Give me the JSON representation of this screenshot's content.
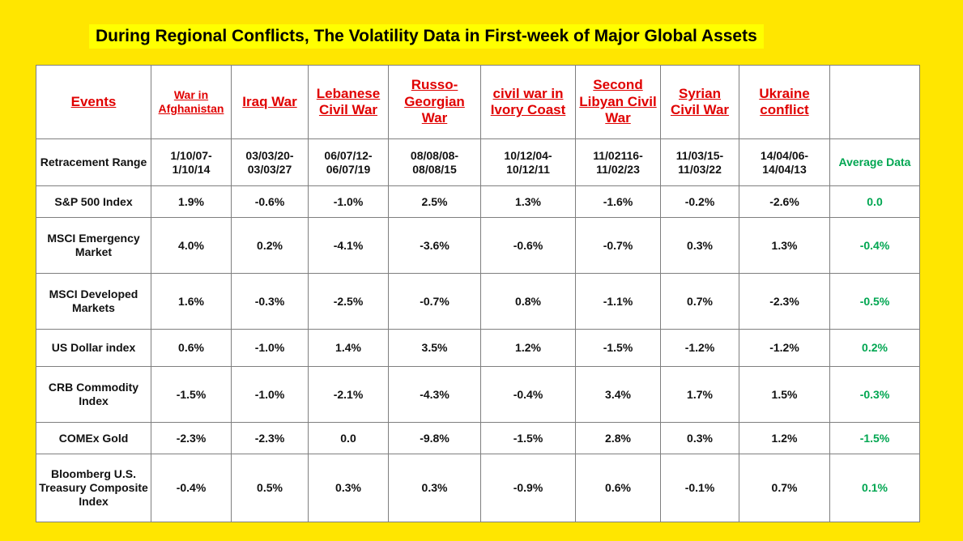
{
  "title": "During Regional Conflicts, The Volatility Data in First-week of Major Global Assets",
  "colors": {
    "background": "#FFE600",
    "title_highlight": "#FFFF00",
    "header_text": "#E00000",
    "average_text": "#00A651"
  },
  "header": {
    "label": "Events",
    "events": [
      "War in Afghanistan",
      "Iraq War",
      "Lebanese Civil War",
      "Russo-Georgian War",
      "civil war in Ivory Coast",
      "Second Libyan Civil War",
      "Syrian Civil War",
      "Ukraine conflict"
    ],
    "last": ""
  },
  "retracement": {
    "label": "Retracement Range",
    "values": [
      "1/10/07-1/10/14",
      "03/03/20-03/03/27",
      "06/07/12-06/07/19",
      "08/08/08-08/08/15",
      "10/12/04-10/12/11",
      "11/02116-11/02/23",
      "11/03/15-11/03/22",
      "14/04/06-14/04/13"
    ],
    "average_label": "Average Data"
  },
  "rows": [
    {
      "label": "S&P 500 Index",
      "values": [
        "1.9%",
        "-0.6%",
        "-1.0%",
        "2.5%",
        "1.3%",
        "-1.6%",
        "-0.2%",
        "-2.6%"
      ],
      "average": "0.0"
    },
    {
      "label": "MSCI Emergency Market",
      "values": [
        "4.0%",
        "0.2%",
        "-4.1%",
        "-3.6%",
        "-0.6%",
        "-0.7%",
        "0.3%",
        "1.3%"
      ],
      "average": "-0.4%"
    },
    {
      "label": "MSCI Developed Markets",
      "values": [
        "1.6%",
        "-0.3%",
        "-2.5%",
        "-0.7%",
        "0.8%",
        "-1.1%",
        "0.7%",
        "-2.3%"
      ],
      "average": "-0.5%"
    },
    {
      "label": "US Dollar index",
      "values": [
        "0.6%",
        "-1.0%",
        "1.4%",
        "3.5%",
        "1.2%",
        "-1.5%",
        "-1.2%",
        "-1.2%"
      ],
      "average": "0.2%"
    },
    {
      "label": "CRB Commodity Index",
      "values": [
        "-1.5%",
        "-1.0%",
        "-2.1%",
        "-4.3%",
        "-0.4%",
        "3.4%",
        "1.7%",
        "1.5%"
      ],
      "average": "-0.3%"
    },
    {
      "label": "COMEx Gold",
      "values": [
        "-2.3%",
        "-2.3%",
        "0.0",
        "-9.8%",
        "-1.5%",
        "2.8%",
        "0.3%",
        "1.2%"
      ],
      "average": "-1.5%"
    },
    {
      "label": "Bloomberg U.S. Treasury Composite Index",
      "values": [
        "-0.4%",
        "0.5%",
        "0.3%",
        "0.3%",
        "-0.9%",
        "0.6%",
        "-0.1%",
        "0.7%"
      ],
      "average": "0.1%"
    }
  ]
}
